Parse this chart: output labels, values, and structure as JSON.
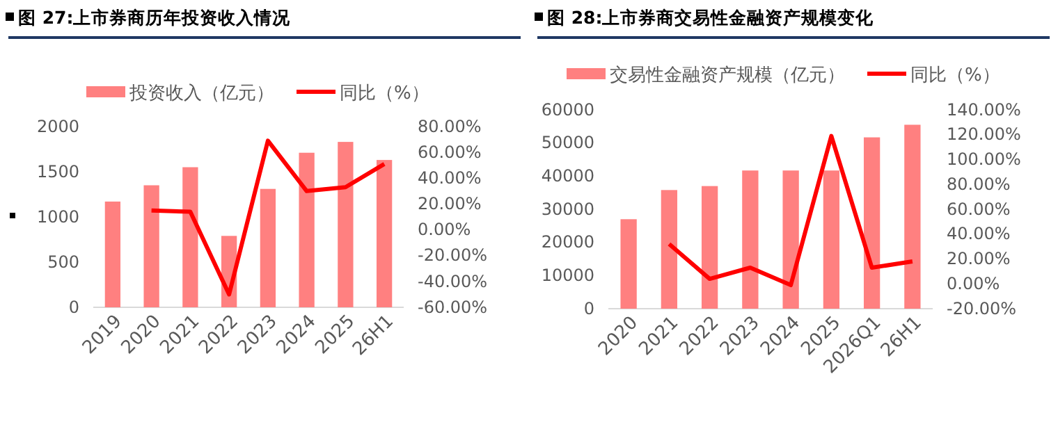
{
  "chart_data": [
    {
      "type": "bar",
      "title": "图 27:上市券商历年投资收入情况",
      "categories": [
        "2019",
        "2020",
        "2021",
        "2022",
        "2023",
        "2024",
        "2025",
        "26H1"
      ],
      "series": [
        {
          "name": "投资收入（亿元）",
          "color": "#ff8080",
          "values": [
            1170,
            1350,
            1550,
            790,
            1310,
            1710,
            1830,
            1630
          ]
        },
        {
          "name": "同比（%）",
          "type": "line",
          "axis": "y2",
          "color": "#ff0000",
          "values": [
            null,
            15,
            14,
            -50,
            69,
            30,
            33,
            51
          ]
        }
      ],
      "ylim": [
        0,
        2000
      ],
      "yticks": [
        0,
        500,
        1000,
        1500,
        2000
      ],
      "y2lim": [
        -60,
        80
      ],
      "y2ticks": [
        {
          "value": -60,
          "label": "-60.00%"
        },
        {
          "value": -40,
          "label": "-40.00%"
        },
        {
          "value": -20,
          "label": "-20.00%"
        },
        {
          "value": 0,
          "label": "0.00%"
        },
        {
          "value": 20,
          "label": "20.00%"
        },
        {
          "value": 40,
          "label": "40.00%"
        },
        {
          "value": 60,
          "label": "60.00%"
        },
        {
          "value": 80,
          "label": "80.00%"
        }
      ],
      "grid": false,
      "legend": "top",
      "marker": "none",
      "line_style": "solid"
    },
    {
      "type": "bar",
      "title": "图 28:上市券商交易性金融资产规模变化",
      "categories": [
        "2020",
        "2021",
        "2022",
        "2023",
        "2024",
        "2025",
        "2026Q1",
        "26H1"
      ],
      "series": [
        {
          "name": "交易性金融资产规模（亿元）",
          "color": "#ff8080",
          "values": [
            27000,
            35800,
            37000,
            41700,
            41700,
            41700,
            51700,
            55500
          ]
        },
        {
          "name": "同比（%）",
          "type": "line",
          "axis": "y2",
          "color": "#ff0000",
          "values": [
            null,
            32,
            4,
            13,
            -1,
            119,
            13,
            18
          ]
        }
      ],
      "ylim": [
        0,
        60000
      ],
      "yticks": [
        0,
        10000,
        20000,
        30000,
        40000,
        50000,
        60000
      ],
      "y2lim": [
        -20,
        140
      ],
      "y2ticks": [
        {
          "value": -20,
          "label": "-20.00%"
        },
        {
          "value": 0,
          "label": "0.00%"
        },
        {
          "value": 20,
          "label": "20.00%"
        },
        {
          "value": 40,
          "label": "40.00%"
        },
        {
          "value": 60,
          "label": "60.00%"
        },
        {
          "value": 80,
          "label": "80.00%"
        },
        {
          "value": 100,
          "label": "100.00%"
        },
        {
          "value": 120,
          "label": "120.00%"
        },
        {
          "value": 140,
          "label": "140.00%"
        }
      ],
      "grid": false,
      "legend": "top",
      "marker": "none",
      "line_style": "solid"
    }
  ]
}
